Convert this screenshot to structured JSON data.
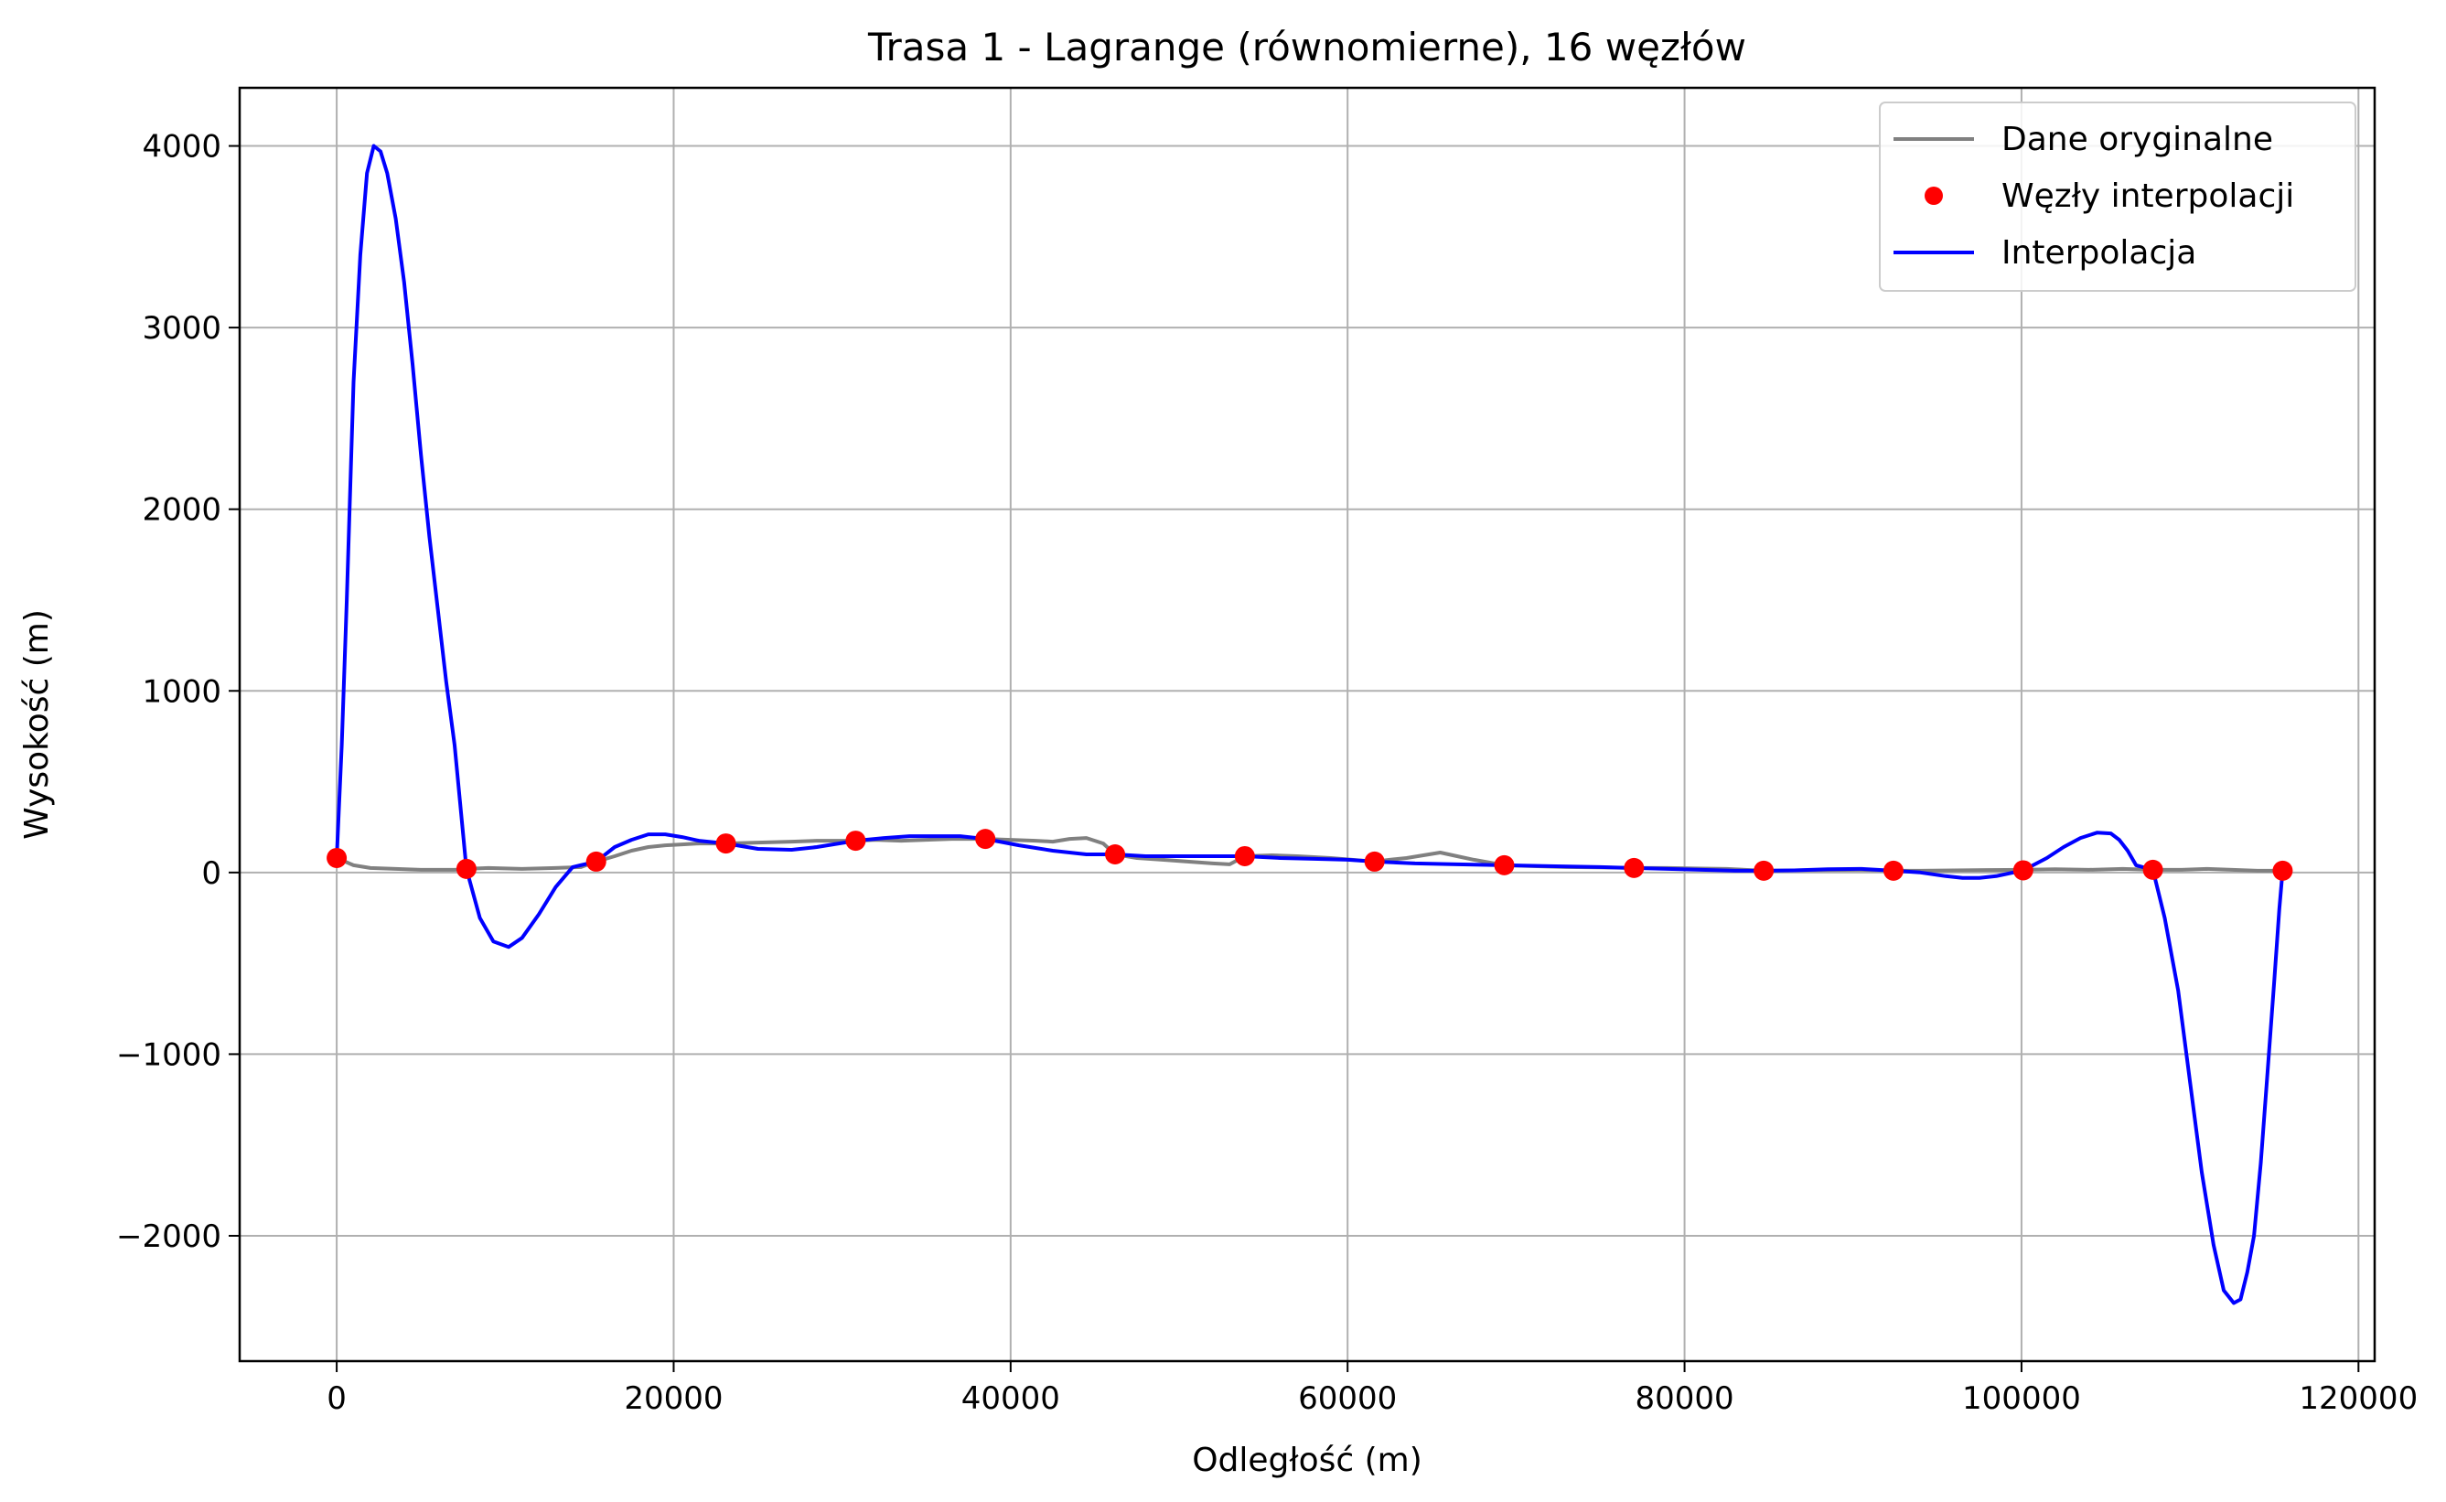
{
  "chart_data": {
    "type": "line",
    "title": "Trasa 1 - Lagrange (równomierne), 16 węzłów",
    "xlabel": "Odległość (m)",
    "ylabel": "Wysokość (m)",
    "xlim": [
      -5760,
      120960
    ],
    "ylim": [
      -2690,
      4320
    ],
    "x_ticks": [
      0,
      20000,
      40000,
      60000,
      80000,
      100000,
      120000
    ],
    "x_tick_labels": [
      "0",
      "20000",
      "40000",
      "60000",
      "80000",
      "100000",
      "120000"
    ],
    "y_ticks": [
      -2000,
      -1000,
      0,
      1000,
      2000,
      3000,
      4000
    ],
    "y_tick_labels": [
      "−2000",
      "−1000",
      "0",
      "1000",
      "2000",
      "3000",
      "4000"
    ],
    "grid": true,
    "legend_position": "top-right",
    "series": [
      {
        "name": "Dane oryginalne",
        "kind": "line",
        "color": "#808080",
        "x": [
          0,
          1000,
          2000,
          3500,
          5000,
          7000,
          7700,
          9000,
          11000,
          13000,
          14500,
          15400,
          16500,
          17500,
          18500,
          19500,
          20500,
          21500,
          23100,
          25000,
          27000,
          28500,
          30800,
          32000,
          33500,
          35000,
          36500,
          38500,
          40000,
          41500,
          42500,
          43500,
          44500,
          45500,
          46200,
          47500,
          49000,
          50500,
          52000,
          53000,
          53900,
          55500,
          57000,
          59000,
          61600,
          62500,
          63500,
          64500,
          65500,
          66500,
          67500,
          69300,
          71000,
          73000,
          75000,
          77000,
          79000,
          81000,
          82500,
          84700,
          86500,
          88500,
          90500,
          92400,
          94000,
          96000,
          98000,
          100100,
          102000,
          104000,
          106000,
          107800,
          109500,
          111000,
          112500,
          114000,
          115500
        ],
        "y": [
          80,
          40,
          25,
          20,
          15,
          15,
          20,
          25,
          20,
          25,
          30,
          60,
          90,
          120,
          140,
          150,
          155,
          160,
          160,
          165,
          170,
          175,
          175,
          180,
          175,
          180,
          185,
          185,
          180,
          175,
          170,
          185,
          190,
          160,
          100,
          80,
          70,
          60,
          50,
          45,
          90,
          95,
          90,
          80,
          60,
          70,
          80,
          95,
          110,
          90,
          70,
          40,
          35,
          30,
          28,
          25,
          25,
          22,
          20,
          10,
          12,
          14,
          15,
          10,
          10,
          12,
          14,
          15,
          18,
          15,
          20,
          15,
          15,
          20,
          15,
          10,
          10
        ]
      },
      {
        "name": "Węzły interpolacji",
        "kind": "scatter",
        "color": "#ff0000",
        "x": [
          0,
          7700,
          15400,
          23100,
          30800,
          38500,
          46200,
          53900,
          61600,
          69300,
          77000,
          84700,
          92400,
          100100,
          107800,
          115500
        ],
        "y": [
          80,
          20,
          60,
          160,
          175,
          185,
          100,
          90,
          60,
          40,
          25,
          10,
          10,
          12,
          15,
          10
        ]
      },
      {
        "name": "Interpolacja",
        "kind": "line",
        "color": "#0000ff",
        "x": [
          0,
          300,
          600,
          1000,
          1400,
          1800,
          2200,
          2600,
          3000,
          3500,
          4000,
          4500,
          5000,
          5500,
          6000,
          6500,
          7000,
          7700,
          8500,
          9300,
          10200,
          11000,
          12000,
          13000,
          14000,
          15400,
          16500,
          17500,
          18500,
          19500,
          20500,
          21500,
          23100,
          25000,
          27000,
          28500,
          30800,
          32500,
          34000,
          35500,
          37000,
          38500,
          40500,
          42500,
          44500,
          46200,
          48000,
          50000,
          52000,
          53900,
          56000,
          58000,
          60000,
          61600,
          64000,
          66500,
          69300,
          72000,
          75000,
          77000,
          79000,
          81000,
          83000,
          84700,
          86500,
          88500,
          90500,
          92400,
          94000,
          95500,
          96500,
          97500,
          98500,
          100100,
          101500,
          102500,
          103500,
          104500,
          105300,
          105800,
          106300,
          106800,
          107800,
          108500,
          109300,
          110000,
          110700,
          111400,
          112000,
          112600,
          113000,
          113400,
          113800,
          114200,
          114600,
          115000,
          115300,
          115500
        ],
        "y": [
          80,
          700,
          1500,
          2700,
          3400,
          3850,
          4000,
          3970,
          3850,
          3600,
          3250,
          2800,
          2300,
          1850,
          1450,
          1050,
          700,
          20,
          -250,
          -380,
          -410,
          -360,
          -230,
          -80,
          30,
          60,
          140,
          180,
          210,
          210,
          195,
          175,
          160,
          130,
          125,
          140,
          175,
          190,
          200,
          200,
          200,
          185,
          150,
          120,
          100,
          100,
          90,
          90,
          90,
          90,
          80,
          75,
          70,
          60,
          50,
          45,
          40,
          35,
          30,
          25,
          20,
          15,
          10,
          10,
          12,
          18,
          20,
          10,
          0,
          -20,
          -30,
          -30,
          -20,
          12,
          80,
          140,
          190,
          220,
          215,
          180,
          120,
          40,
          15,
          -250,
          -650,
          -1150,
          -1650,
          -2050,
          -2300,
          -2370,
          -2350,
          -2200,
          -2000,
          -1600,
          -1100,
          -600,
          -200,
          10
        ]
      }
    ]
  }
}
